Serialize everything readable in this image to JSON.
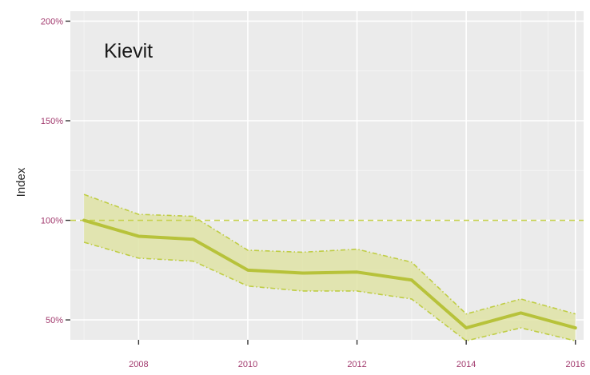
{
  "colors": {
    "panel": "#ebebeb",
    "grid_major": "#ffffff",
    "grid_minor": "#f4f4f4",
    "line": "#b7c23a",
    "ribbon_fill": "#dfe3a6",
    "ribbon_edge": "#bfcd44",
    "reference": "#c6d14f",
    "tick_text": "#a23a6e",
    "axis_title": "#2b2b2b",
    "panel_label": "#1a1a1a"
  },
  "chart_data": {
    "type": "line",
    "title": "",
    "panel_label": "Kievit",
    "xlabel": "",
    "ylabel": "Index",
    "xlim": [
      2006.75,
      2016.15
    ],
    "ylim": [
      40,
      205
    ],
    "x_ticks": [
      2008,
      2010,
      2012,
      2014,
      2016
    ],
    "y_ticks": [
      50,
      100,
      150,
      200
    ],
    "y_tick_labels": [
      "50%",
      "100%",
      "150%",
      "200%"
    ],
    "x": [
      2007,
      2008,
      2009,
      2010,
      2011,
      2012,
      2013,
      2014,
      2015,
      2016
    ],
    "series": [
      {
        "role": "index",
        "values": [
          100,
          92,
          90.5,
          75,
          73.5,
          74,
          70,
          46,
          53.5,
          46
        ]
      },
      {
        "role": "upper",
        "values": [
          113,
          103,
          102,
          85,
          84,
          85.5,
          79,
          53,
          60.5,
          53
        ]
      },
      {
        "role": "lower",
        "values": [
          89,
          81,
          79.5,
          67,
          64.5,
          64.5,
          60.5,
          39.5,
          46,
          39.5
        ]
      }
    ],
    "reference_line": 100,
    "grid": true,
    "legend": "none"
  }
}
